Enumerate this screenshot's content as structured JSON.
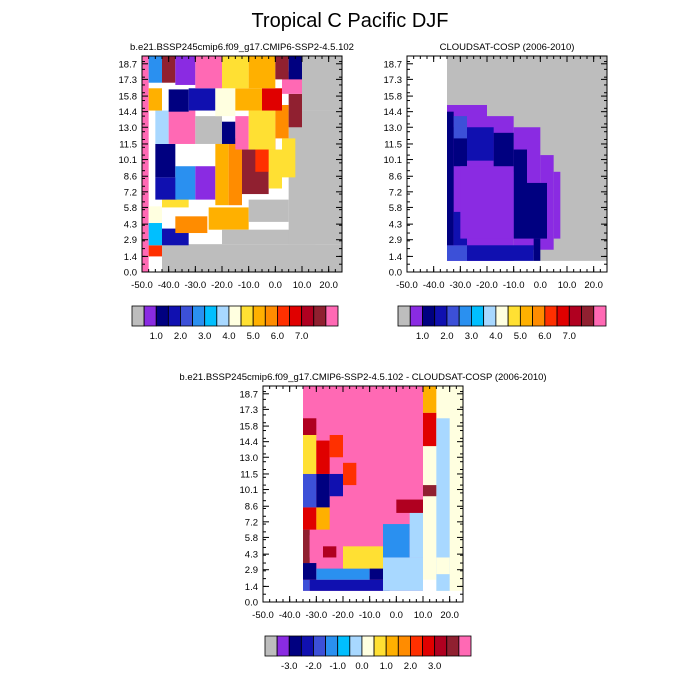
{
  "page": {
    "title": "Tropical C Pacific DJF"
  },
  "palette": {
    "main": [
      "#bdbdbd",
      "#8a2be2",
      "#000080",
      "#1010b0",
      "#3c50d8",
      "#2a90f0",
      "#00bfff",
      "#a8d8ff",
      "#ffffe0",
      "#ffe033",
      "#ffb000",
      "#ff8c00",
      "#ff3000",
      "#e00000",
      "#b00020",
      "#902030",
      "#ff69b4"
    ],
    "diff": [
      "#bdbdbd",
      "#8a2be2",
      "#000080",
      "#1010b0",
      "#3c50d8",
      "#2a90f0",
      "#00bfff",
      "#a8d8ff",
      "#ffffe0",
      "#ffe033",
      "#ffb000",
      "#ff8c00",
      "#ff3000",
      "#e00000",
      "#b00020",
      "#902030",
      "#ff69b4"
    ]
  },
  "chart_data": [
    {
      "type": "heatmap",
      "title": "b.e21.BSSP245cmip6.f09_g17.CMIP6-SSP2-4.5.102",
      "x_ticks": [
        "-50.0",
        "-40.0",
        "-30.0",
        "-20.0",
        "-10.0",
        "0.0",
        "10.0",
        "20.0"
      ],
      "y_ticks": [
        "0.0",
        "1.4",
        "2.9",
        "4.3",
        "5.8",
        "7.2",
        "8.6",
        "10.1",
        "11.5",
        "13.0",
        "14.4",
        "15.8",
        "17.3",
        "18.7"
      ],
      "xlim": [
        -50,
        25
      ],
      "ylim": [
        0,
        19.4
      ],
      "colorbar_labels": [
        "1.0",
        "2.0",
        "3.0",
        "4.0",
        "5.0",
        "6.0",
        "7.0"
      ],
      "cells": [
        {
          "x": -50,
          "xw": 2.5,
          "y": 0,
          "yh": 19.4,
          "c": 16
        },
        {
          "x": -42.5,
          "xw": 70,
          "y": 0,
          "yh": 2.5,
          "c": 0
        },
        {
          "x": -47.5,
          "xw": 5,
          "y": 1.4,
          "yh": 1,
          "c": 12
        },
        {
          "x": -47.5,
          "xw": 5,
          "y": 2.4,
          "yh": 2,
          "c": 6
        },
        {
          "x": -42.5,
          "xw": 10,
          "y": 2.4,
          "yh": 1.5,
          "c": 3
        },
        {
          "x": -37.5,
          "xw": 12,
          "y": 3.5,
          "yh": 1.5,
          "c": 11
        },
        {
          "x": -25,
          "xw": 15,
          "y": 3.8,
          "yh": 2,
          "c": 10
        },
        {
          "x": -10,
          "xw": 15,
          "y": 4.5,
          "yh": 2,
          "c": 0
        },
        {
          "x": -20,
          "xw": 35,
          "y": 2.5,
          "yh": 1.3,
          "c": 0
        },
        {
          "x": 5,
          "xw": 25,
          "y": 2.5,
          "yh": 12,
          "c": 0
        },
        {
          "x": -47.5,
          "xw": 5,
          "y": 4.4,
          "yh": 1.5,
          "c": 8
        },
        {
          "x": -42.5,
          "xw": 10,
          "y": 5.8,
          "yh": 1.5,
          "c": 9
        },
        {
          "x": -45,
          "xw": 8,
          "y": 6.5,
          "yh": 2,
          "c": 3
        },
        {
          "x": -45,
          "xw": 7.5,
          "y": 8.5,
          "yh": 3,
          "c": 2
        },
        {
          "x": -37.5,
          "xw": 7.5,
          "y": 6.5,
          "yh": 3,
          "c": 5
        },
        {
          "x": -30,
          "xw": 7.5,
          "y": 6.5,
          "yh": 3,
          "c": 1
        },
        {
          "x": -22.5,
          "xw": 5,
          "y": 6,
          "yh": 7,
          "c": 10
        },
        {
          "x": -17.5,
          "xw": 5,
          "y": 6,
          "yh": 6,
          "c": 11
        },
        {
          "x": -12.5,
          "xw": 10,
          "y": 7,
          "yh": 4,
          "c": 15
        },
        {
          "x": -7.5,
          "xw": 7.5,
          "y": 9,
          "yh": 3,
          "c": 12
        },
        {
          "x": -2.5,
          "xw": 5,
          "y": 7.5,
          "yh": 3.5,
          "c": 9
        },
        {
          "x": 2.5,
          "xw": 5,
          "y": 8.5,
          "yh": 3.5,
          "c": 9
        },
        {
          "x": -45,
          "xw": 5,
          "y": 11.5,
          "yh": 3,
          "c": 7
        },
        {
          "x": -40,
          "xw": 10,
          "y": 11.5,
          "yh": 3,
          "c": 16
        },
        {
          "x": -40,
          "xw": 7.5,
          "y": 14.4,
          "yh": 2,
          "c": 2
        },
        {
          "x": -30,
          "xw": 10,
          "y": 11.5,
          "yh": 2.5,
          "c": 0
        },
        {
          "x": -20,
          "xw": 5,
          "y": 11.5,
          "yh": 2,
          "c": 2
        },
        {
          "x": -15,
          "xw": 5,
          "y": 11,
          "yh": 3,
          "c": 16
        },
        {
          "x": -10,
          "xw": 10,
          "y": 11,
          "yh": 3.5,
          "c": 9
        },
        {
          "x": 0,
          "xw": 5,
          "y": 12,
          "yh": 3,
          "c": 11
        },
        {
          "x": 5,
          "xw": 5,
          "y": 13,
          "yh": 3,
          "c": 15
        },
        {
          "x": -47.5,
          "xw": 5,
          "y": 14.5,
          "yh": 2,
          "c": 10
        },
        {
          "x": -32.5,
          "xw": 10,
          "y": 14.5,
          "yh": 2,
          "c": 3
        },
        {
          "x": -22.5,
          "xw": 7.5,
          "y": 14,
          "yh": 2.5,
          "c": 8
        },
        {
          "x": -15,
          "xw": 10,
          "y": 14.5,
          "yh": 2,
          "c": 10
        },
        {
          "x": -5,
          "xw": 7.5,
          "y": 14.5,
          "yh": 2,
          "c": 13
        },
        {
          "x": 2.5,
          "xw": 7.5,
          "y": 16,
          "yh": 2,
          "c": 16
        },
        {
          "x": -47.5,
          "xw": 5,
          "y": 17,
          "yh": 2.4,
          "c": 5
        },
        {
          "x": -42.5,
          "xw": 5,
          "y": 17,
          "yh": 2.4,
          "c": 15
        },
        {
          "x": -37.5,
          "xw": 7.5,
          "y": 16.8,
          "yh": 2.6,
          "c": 1
        },
        {
          "x": -30,
          "xw": 10,
          "y": 16.5,
          "yh": 2.9,
          "c": 16
        },
        {
          "x": -20,
          "xw": 10,
          "y": 16.5,
          "yh": 2.9,
          "c": 9
        },
        {
          "x": -10,
          "xw": 10,
          "y": 16.5,
          "yh": 2.9,
          "c": 10
        },
        {
          "x": 0,
          "xw": 5,
          "y": 17.3,
          "yh": 2.1,
          "c": 15
        },
        {
          "x": 5,
          "xw": 5,
          "y": 17.3,
          "yh": 2.1,
          "c": 2
        },
        {
          "x": 10,
          "xw": 15,
          "y": 14.5,
          "yh": 4.9,
          "c": 0
        }
      ]
    },
    {
      "type": "heatmap",
      "title": "CLOUDSAT-COSP (2006-2010)",
      "x_ticks": [
        "-50.0",
        "-40.0",
        "-30.0",
        "-20.0",
        "-10.0",
        "0.0",
        "10.0",
        "20.0"
      ],
      "y_ticks": [
        "0.0",
        "1.4",
        "2.9",
        "4.3",
        "5.8",
        "7.2",
        "8.6",
        "10.1",
        "11.5",
        "13.0",
        "14.4",
        "15.8",
        "17.3",
        "18.7"
      ],
      "xlim": [
        -50,
        25
      ],
      "ylim": [
        0,
        19.4
      ],
      "colorbar_labels": [
        "1.0",
        "2.0",
        "3.0",
        "4.0",
        "5.0",
        "6.0",
        "7.0"
      ],
      "cells": [
        {
          "x": -35,
          "xw": 60,
          "y": 1,
          "yh": 18.4,
          "c": 0
        },
        {
          "x": -35,
          "xw": 15,
          "y": 1,
          "yh": 14,
          "c": 1
        },
        {
          "x": -20,
          "xw": 10,
          "y": 1,
          "yh": 13,
          "c": 1
        },
        {
          "x": -10,
          "xw": 10,
          "y": 2,
          "yh": 11,
          "c": 1
        },
        {
          "x": 0,
          "xw": 5,
          "y": 2,
          "yh": 8.5,
          "c": 1
        },
        {
          "x": 5,
          "xw": 2.5,
          "y": 3,
          "yh": 6,
          "c": 1
        },
        {
          "x": -35,
          "xw": 7.5,
          "y": 1,
          "yh": 1.4,
          "c": 4
        },
        {
          "x": -27.5,
          "xw": 25,
          "y": 1,
          "yh": 1.4,
          "c": 3
        },
        {
          "x": -2.5,
          "xw": 2.5,
          "y": 1,
          "yh": 2,
          "c": 2
        },
        {
          "x": -35,
          "xw": 2.5,
          "y": 2.4,
          "yh": 12,
          "c": 2
        },
        {
          "x": -32.5,
          "xw": 5,
          "y": 2.4,
          "yh": 3,
          "c": 3
        },
        {
          "x": -32.5,
          "xw": 5,
          "y": 9.5,
          "yh": 3.5,
          "c": 2
        },
        {
          "x": -32.5,
          "xw": 5,
          "y": 12,
          "yh": 2,
          "c": 4
        },
        {
          "x": -27.5,
          "xw": 10,
          "y": 10,
          "yh": 3,
          "c": 3
        },
        {
          "x": -17.5,
          "xw": 7.5,
          "y": 9,
          "yh": 3.5,
          "c": 2
        },
        {
          "x": -10,
          "xw": 5,
          "y": 3,
          "yh": 8,
          "c": 2
        },
        {
          "x": -5,
          "xw": 7.5,
          "y": 3,
          "yh": 5,
          "c": 2
        },
        {
          "x": -30,
          "xw": 20,
          "y": 3,
          "yh": 6.5,
          "c": 1
        }
      ]
    },
    {
      "type": "heatmap",
      "title": "b.e21.BSSP245cmip6.f09_g17.CMIP6-SSP2-4.5.102 - CLOUDSAT-COSP (2006-2010)",
      "x_ticks": [
        "-50.0",
        "-40.0",
        "-30.0",
        "-20.0",
        "-10.0",
        "0.0",
        "10.0",
        "20.0"
      ],
      "y_ticks": [
        "0.0",
        "1.4",
        "2.9",
        "4.3",
        "5.8",
        "7.2",
        "8.6",
        "10.1",
        "11.5",
        "13.0",
        "14.4",
        "15.8",
        "17.3",
        "18.7"
      ],
      "xlim": [
        -50,
        25
      ],
      "ylim": [
        0,
        19.4
      ],
      "colorbar_labels": [
        "-3.0",
        "-2.0",
        "-1.0",
        "0.0",
        "1.0",
        "2.0",
        "3.0"
      ],
      "cells": [
        {
          "x": -35,
          "xw": 45,
          "y": 1,
          "yh": 18.4,
          "c": 16
        },
        {
          "x": 10,
          "xw": 5,
          "y": 2,
          "yh": 17.4,
          "c": 8
        },
        {
          "x": 15,
          "xw": 10,
          "y": 1,
          "yh": 18.4,
          "c": 8
        },
        {
          "x": -35,
          "xw": 2.5,
          "y": 1,
          "yh": 1,
          "c": 4
        },
        {
          "x": -32.5,
          "xw": 30,
          "y": 1,
          "yh": 1,
          "c": 3
        },
        {
          "x": -35,
          "xw": 5,
          "y": 2,
          "yh": 1.5,
          "c": 2
        },
        {
          "x": -30,
          "xw": 20,
          "y": 2,
          "yh": 1,
          "c": 5
        },
        {
          "x": -10,
          "xw": 5,
          "y": 2,
          "yh": 2,
          "c": 2
        },
        {
          "x": -5,
          "xw": 15,
          "y": 1,
          "yh": 3,
          "c": 7
        },
        {
          "x": -20,
          "xw": 15,
          "y": 3,
          "yh": 2,
          "c": 9
        },
        {
          "x": -35,
          "xw": 2.5,
          "y": 3.5,
          "yh": 3,
          "c": 15
        },
        {
          "x": -32.5,
          "xw": 5,
          "y": 4,
          "yh": 2,
          "c": 16
        },
        {
          "x": -27.5,
          "xw": 5,
          "y": 4,
          "yh": 1,
          "c": 14
        },
        {
          "x": -5,
          "xw": 10,
          "y": 4,
          "yh": 3,
          "c": 5
        },
        {
          "x": 5,
          "xw": 5,
          "y": 4,
          "yh": 5,
          "c": 7
        },
        {
          "x": -35,
          "xw": 5,
          "y": 6.5,
          "yh": 2,
          "c": 13
        },
        {
          "x": -30,
          "xw": 5,
          "y": 6.5,
          "yh": 2,
          "c": 10
        },
        {
          "x": -35,
          "xw": 5,
          "y": 8.5,
          "yh": 3,
          "c": 4
        },
        {
          "x": -30,
          "xw": 5,
          "y": 8.5,
          "yh": 3,
          "c": 2
        },
        {
          "x": -25,
          "xw": 5,
          "y": 9.5,
          "yh": 2,
          "c": 3
        },
        {
          "x": -20,
          "xw": 5,
          "y": 10.5,
          "yh": 2,
          "c": 12
        },
        {
          "x": -35,
          "xw": 5,
          "y": 11.5,
          "yh": 4,
          "c": 9
        },
        {
          "x": -30,
          "xw": 5,
          "y": 11.5,
          "yh": 3,
          "c": 13
        },
        {
          "x": -25,
          "xw": 5,
          "y": 13,
          "yh": 2,
          "c": 12
        },
        {
          "x": -35,
          "xw": 5,
          "y": 15,
          "yh": 1.5,
          "c": 14
        },
        {
          "x": 10,
          "xw": 5,
          "y": 14,
          "yh": 3,
          "c": 13
        },
        {
          "x": 10,
          "xw": 5,
          "y": 17,
          "yh": 2.4,
          "c": 10
        },
        {
          "x": 15,
          "xw": 5,
          "y": 1,
          "yh": 15.5,
          "c": 7
        },
        {
          "x": 15,
          "xw": 5,
          "y": 2.5,
          "yh": 1.5,
          "c": 8
        },
        {
          "x": 10,
          "xw": 5,
          "y": 9.5,
          "yh": 1,
          "c": 15
        },
        {
          "x": 0,
          "xw": 10,
          "y": 8,
          "yh": 1.2,
          "c": 14
        }
      ]
    }
  ]
}
